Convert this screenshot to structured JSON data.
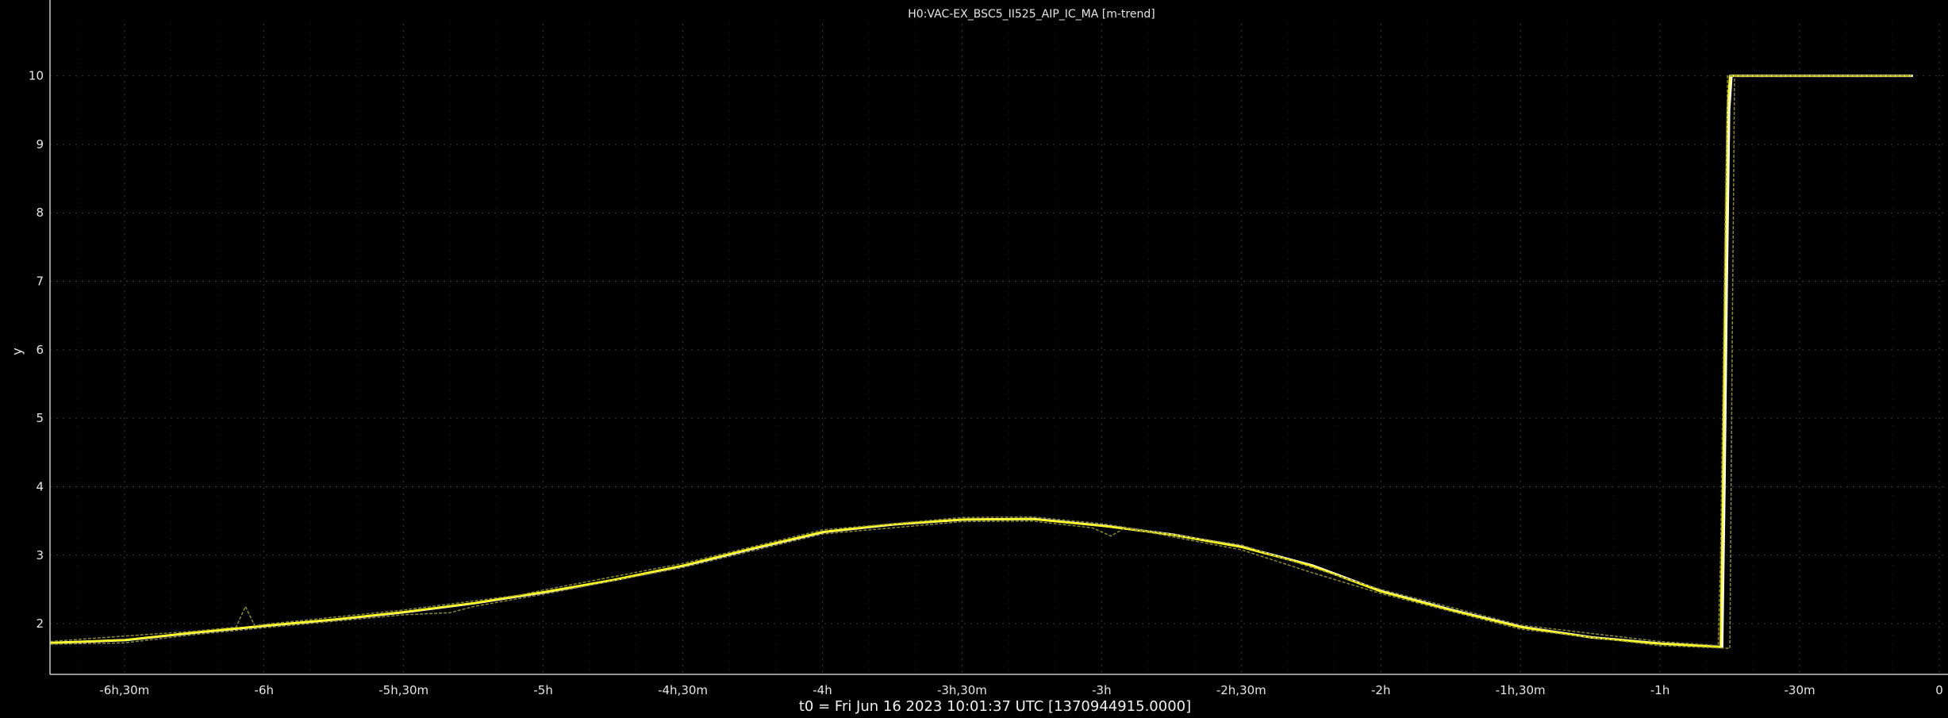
{
  "chart_data": {
    "type": "line",
    "title": "H0:VAC-EX_BSC5_II525_AIP_IC_MA [m-trend]",
    "xlabel": "t0 = Fri Jun 16 2023 10:01:37 UTC [1370944915.0000]",
    "ylabel": "y",
    "xlim": [
      -406,
      0
    ],
    "ylim": [
      1.26,
      10.76
    ],
    "grid": true,
    "x_unit": "minutes",
    "x_ticks": [
      {
        "value": -390,
        "label": "-6h,30m"
      },
      {
        "value": -360,
        "label": "-6h"
      },
      {
        "value": -330,
        "label": "-5h,30m"
      },
      {
        "value": -300,
        "label": "-5h"
      },
      {
        "value": -270,
        "label": "-4h,30m"
      },
      {
        "value": -240,
        "label": "-4h"
      },
      {
        "value": -210,
        "label": "-3h,30m"
      },
      {
        "value": -180,
        "label": "-3h"
      },
      {
        "value": -150,
        "label": "-2h,30m"
      },
      {
        "value": -120,
        "label": "-2h"
      },
      {
        "value": -90,
        "label": "-1h,30m"
      },
      {
        "value": -60,
        "label": "-1h"
      },
      {
        "value": -30,
        "label": "-30m"
      },
      {
        "value": 0,
        "label": "0"
      }
    ],
    "y_ticks": [
      {
        "value": 2,
        "label": "2"
      },
      {
        "value": 3,
        "label": "3"
      },
      {
        "value": 4,
        "label": "4"
      },
      {
        "value": 5,
        "label": "5"
      },
      {
        "value": 6,
        "label": "6"
      },
      {
        "value": 7,
        "label": "7"
      },
      {
        "value": 8,
        "label": "8"
      },
      {
        "value": 9,
        "label": "9"
      },
      {
        "value": 10,
        "label": "10"
      }
    ],
    "colors": {
      "background": "#000000",
      "axis": "#c8c8c8",
      "grid": "#3a3a3a",
      "mean": "#ffff20",
      "mean_outline": "#ffffff",
      "minmax": "#8a8a30",
      "text": "#e6e6e6"
    },
    "series": [
      {
        "role": "mean",
        "x": [
          -406,
          -390,
          -375,
          -360,
          -345,
          -330,
          -315,
          -300,
          -285,
          -270,
          -255,
          -240,
          -225,
          -210,
          -195,
          -180,
          -165,
          -150,
          -135,
          -120,
          -105,
          -90,
          -75,
          -60,
          -47,
          -46.5,
          -46,
          -45.5,
          -45,
          -6
        ],
        "y": [
          1.72,
          1.76,
          1.87,
          1.97,
          2.06,
          2.17,
          2.3,
          2.46,
          2.64,
          2.85,
          3.1,
          3.34,
          3.45,
          3.52,
          3.53,
          3.43,
          3.3,
          3.12,
          2.85,
          2.47,
          2.2,
          1.95,
          1.8,
          1.71,
          1.66,
          4.0,
          7.0,
          9.5,
          10,
          10
        ]
      },
      {
        "role": "max",
        "x": [
          -406,
          -390,
          -375,
          -366,
          -364,
          -362,
          -360,
          -330,
          -305,
          -300,
          -270,
          -240,
          -210,
          -195,
          -180,
          -150,
          -120,
          -90,
          -60,
          -47.5,
          -47,
          -46,
          -45.5,
          -6
        ],
        "y": [
          1.74,
          1.82,
          1.89,
          1.95,
          2.25,
          1.97,
          1.99,
          2.2,
          2.42,
          2.49,
          2.88,
          3.37,
          3.55,
          3.56,
          3.46,
          3.15,
          2.5,
          1.98,
          1.74,
          1.68,
          3.0,
          8.0,
          10,
          10
        ]
      },
      {
        "role": "min",
        "x": [
          -406,
          -390,
          -375,
          -360,
          -330,
          -320,
          -315,
          -300,
          -270,
          -240,
          -210,
          -195,
          -182,
          -178,
          -175,
          -150,
          -140,
          -135,
          -120,
          -90,
          -60,
          -45,
          -44.5,
          -44,
          -6
        ],
        "y": [
          1.7,
          1.72,
          1.84,
          1.94,
          2.13,
          2.16,
          2.25,
          2.43,
          2.82,
          3.31,
          3.49,
          3.5,
          3.4,
          3.28,
          3.4,
          3.08,
          2.86,
          2.75,
          2.44,
          1.92,
          1.68,
          1.64,
          6.0,
          10,
          10
        ]
      }
    ]
  }
}
